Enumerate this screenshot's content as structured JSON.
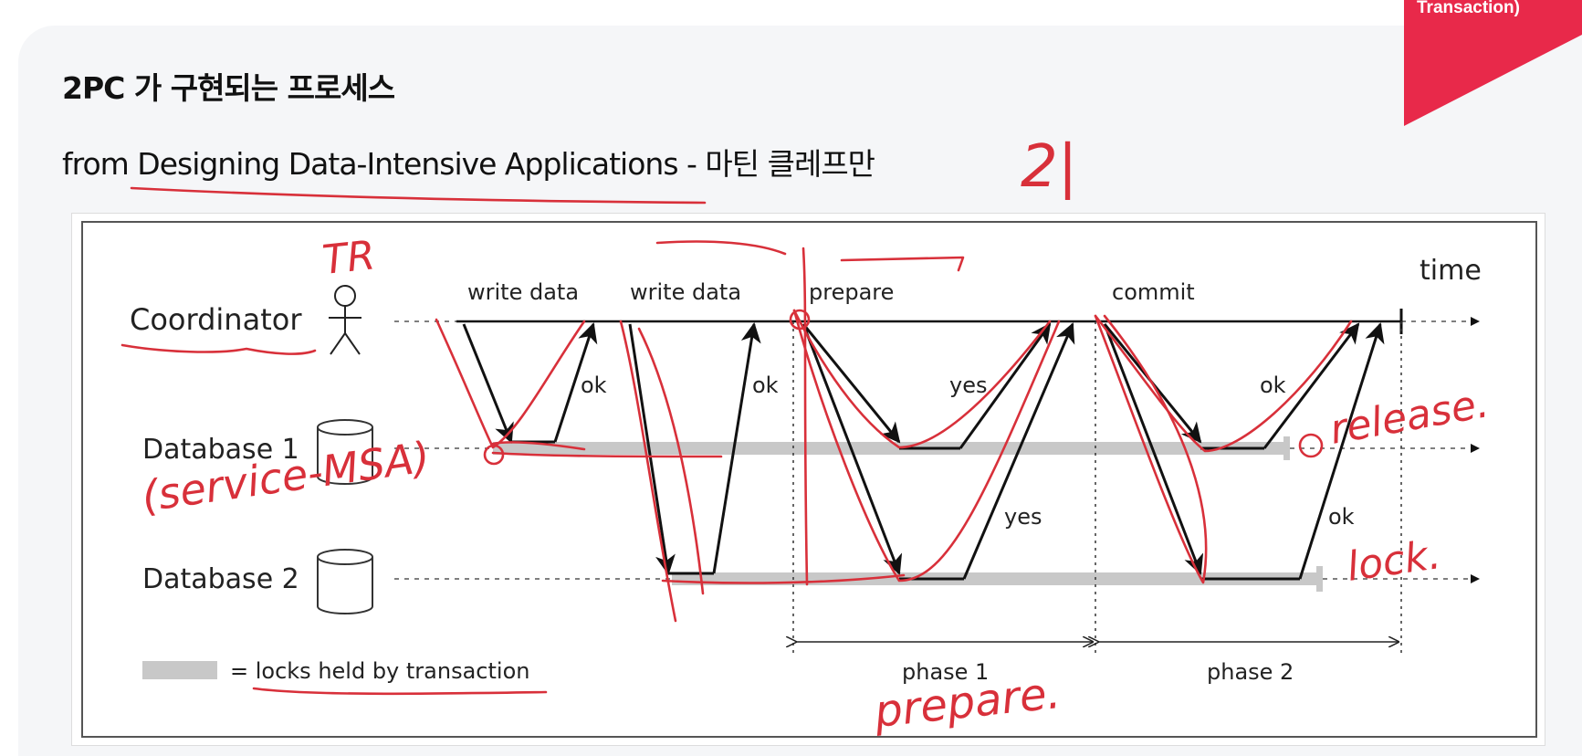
{
  "slide": {
    "title": "2PC 가 구현되는 프로세스",
    "subtitle": "from Designing Data-Intensive Applications - 마틴 클레프만",
    "corner_label": "Transaction)",
    "accent_color": "#e8294a"
  },
  "diagram": {
    "time_label": "time",
    "participants": {
      "coordinator": "Coordinator",
      "db1": "Database 1",
      "db2": "Database 2"
    },
    "messages": {
      "write_data_1": "write data",
      "write_data_2": "write data",
      "prepare": "prepare",
      "commit": "commit",
      "ok_1": "ok",
      "ok_2": "ok",
      "yes_1": "yes",
      "yes_2": "yes",
      "ok_3": "ok",
      "ok_4": "ok"
    },
    "phases": {
      "phase1": "phase 1",
      "phase2": "phase 2"
    },
    "legend": "= locks held by transaction"
  },
  "annotations": {
    "handwritten_color": "#d8303a",
    "tr": "TR",
    "ji": "2|",
    "service_msa": "(service-MSA)",
    "release": "release.",
    "lock": "lock.",
    "prepare": "prepare."
  }
}
